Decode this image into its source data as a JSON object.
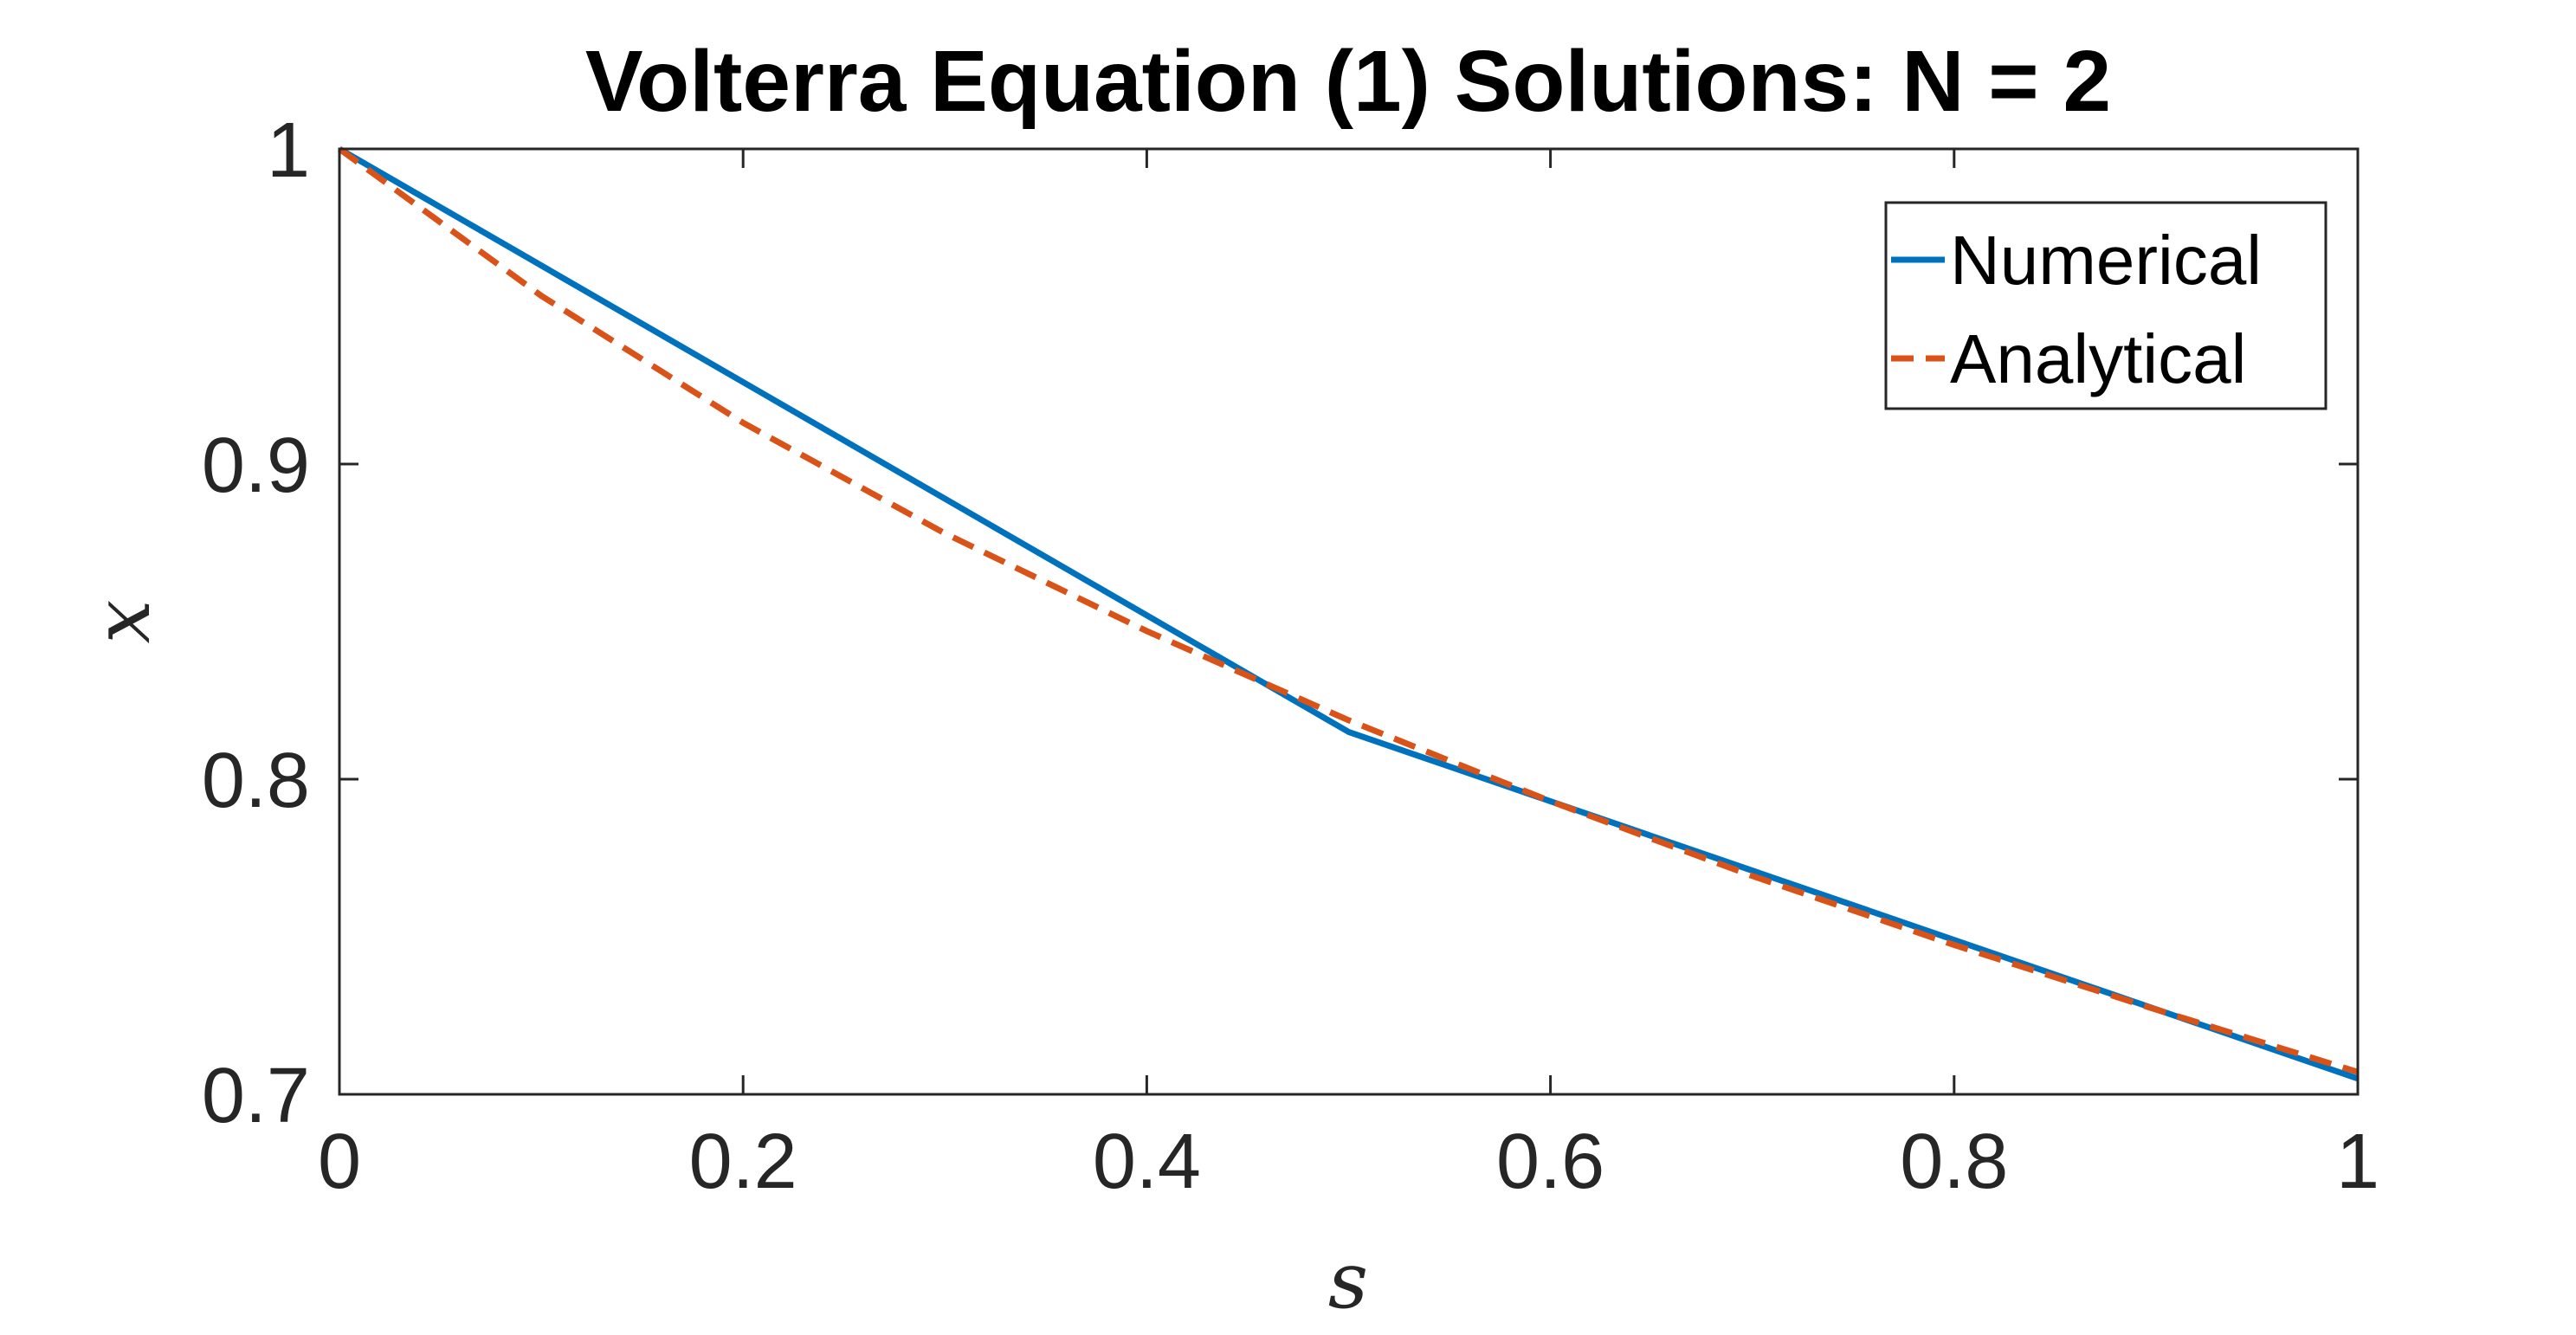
{
  "chart_data": {
    "type": "line",
    "title": "Volterra Equation (1) Solutions: N = 2",
    "xlabel": "s",
    "ylabel": "x",
    "xlim": [
      0,
      1
    ],
    "ylim": [
      0.7,
      1
    ],
    "xticks": [
      0,
      0.2,
      0.4,
      0.6,
      0.8,
      1
    ],
    "xtick_labels": [
      "0",
      "0.2",
      "0.4",
      "0.6",
      "0.8",
      "1"
    ],
    "yticks": [
      0.7,
      0.8,
      0.9,
      1
    ],
    "ytick_labels": [
      "0.7",
      "0.8",
      "0.9",
      "1"
    ],
    "grid": false,
    "legend_position": "top-right",
    "series": [
      {
        "name": "Numerical",
        "style": "solid",
        "color": "#0072BD",
        "x": [
          0,
          0.5,
          1
        ],
        "y": [
          1.0,
          0.815,
          0.705
        ]
      },
      {
        "name": "Analytical",
        "style": "dashed",
        "color": "#D95319",
        "x": [
          0,
          0.1,
          0.2,
          0.3,
          0.4,
          0.5,
          0.6,
          0.7,
          0.8,
          0.9,
          1.0
        ],
        "y": [
          1.0,
          0.9534,
          0.9131,
          0.878,
          0.847,
          0.8187,
          0.793,
          0.7693,
          0.7474,
          0.7269,
          0.7071
        ]
      }
    ]
  }
}
